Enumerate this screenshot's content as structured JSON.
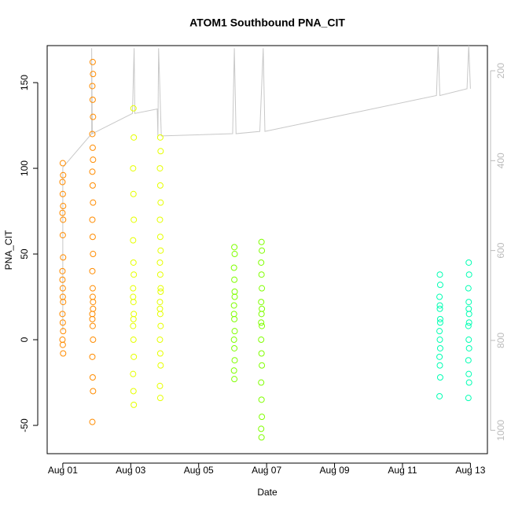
{
  "chart_data": {
    "type": "scatter",
    "title": "ATOM1 Southbound PNA_CIT",
    "xlabel": "Date",
    "ylabel": "PNA_CIT",
    "xlim": [
      0.54,
      13.5
    ],
    "ylim": [
      -66.5,
      171.6
    ],
    "y2lim": [
      1052,
      144
    ],
    "xticks": [
      {
        "value": 1,
        "label": "Aug 01"
      },
      {
        "value": 3,
        "label": "Aug 03"
      },
      {
        "value": 5,
        "label": "Aug 05"
      },
      {
        "value": 7,
        "label": "Aug 07"
      },
      {
        "value": 9,
        "label": "Aug 09"
      },
      {
        "value": 11,
        "label": "Aug 11"
      },
      {
        "value": 13,
        "label": "Aug 13"
      }
    ],
    "yticks": [
      -50,
      0,
      50,
      100,
      150
    ],
    "y2ticks": [
      200,
      400,
      600,
      800,
      1000
    ],
    "series": [
      {
        "type": "line",
        "axis": "y2",
        "color": "#c8c8c8",
        "x": [
          1.0,
          1.0,
          1.85,
          1.85,
          1.87,
          3.05,
          3.1,
          3.12,
          3.78,
          3.8,
          3.82,
          3.9,
          6.0,
          6.05,
          6.1,
          6.8,
          6.9,
          6.95,
          12.0,
          12.05,
          12.1,
          12.9,
          12.95,
          13.0
        ],
        "values": [
          778,
          415,
          340,
          150,
          340,
          295,
          150,
          295,
          285,
          345,
          150,
          345,
          340,
          150,
          340,
          335,
          150,
          335,
          255,
          144,
          255,
          240,
          144,
          240
        ]
      },
      {
        "type": "scatter",
        "color": "#ff8c00",
        "x": [
          1.0,
          1.01,
          0.99,
          1.0,
          1.01,
          0.99,
          1.0,
          1.01,
          0.99,
          1.0,
          1.01,
          0.99,
          1.0,
          1.01,
          0.99,
          1.0,
          1.01,
          0.99,
          1.0,
          1.01,
          1.88,
          1.89,
          1.87,
          1.88,
          1.89,
          1.87,
          1.88,
          1.89,
          1.87,
          1.88,
          1.89,
          1.87,
          1.88,
          1.89,
          1.87,
          1.88,
          1.89,
          1.87,
          1.88,
          1.89,
          1.87,
          1.88,
          1.89,
          1.87,
          1.88,
          1.89,
          1.87
        ],
        "values": [
          103,
          96,
          92,
          85,
          78,
          74,
          61,
          48,
          40,
          30,
          22,
          15,
          10,
          5,
          0,
          -3,
          -8,
          35,
          25,
          70,
          162,
          155,
          148,
          140,
          130,
          120,
          112,
          105,
          98,
          90,
          80,
          70,
          60,
          50,
          40,
          30,
          22,
          15,
          8,
          0,
          -10,
          -22,
          -30,
          -48,
          25,
          18,
          12
        ]
      },
      {
        "type": "scatter",
        "color": "#e6ff00",
        "x": [
          3.08,
          3.09,
          3.07,
          3.08,
          3.09,
          3.07,
          3.08,
          3.09,
          3.07,
          3.08,
          3.09,
          3.07,
          3.08,
          3.09,
          3.07,
          3.08,
          3.09,
          3.07,
          3.08,
          3.87,
          3.88,
          3.86,
          3.87,
          3.88,
          3.86,
          3.87,
          3.88,
          3.86,
          3.87,
          3.88,
          3.86,
          3.87,
          3.88,
          3.86,
          3.87,
          3.88,
          3.86,
          3.87,
          3.88,
          3.86
        ],
        "values": [
          135,
          118,
          100,
          85,
          70,
          58,
          45,
          38,
          30,
          22,
          15,
          8,
          0,
          -10,
          -20,
          -30,
          -38,
          25,
          12,
          118,
          110,
          100,
          90,
          80,
          70,
          60,
          52,
          45,
          38,
          30,
          22,
          15,
          8,
          0,
          -8,
          -15,
          -27,
          -34,
          28,
          18
        ]
      },
      {
        "type": "scatter",
        "color": "#80ff00",
        "x": [
          6.05,
          6.06,
          6.04,
          6.05,
          6.06,
          6.04,
          6.05,
          6.06,
          6.04,
          6.05,
          6.06,
          6.04,
          6.05,
          6.06,
          6.04,
          6.85,
          6.86,
          6.84,
          6.85,
          6.86,
          6.84,
          6.85,
          6.86,
          6.84,
          6.85,
          6.86,
          6.84,
          6.85,
          6.86,
          6.84,
          6.85,
          6.86,
          6.84
        ],
        "values": [
          54,
          50,
          42,
          35,
          28,
          20,
          12,
          5,
          0,
          -5,
          -12,
          -18,
          -23,
          25,
          15,
          57,
          52,
          45,
          38,
          30,
          22,
          15,
          8,
          0,
          -8,
          -15,
          -25,
          -35,
          -45,
          -52,
          -57,
          18,
          10
        ]
      },
      {
        "type": "scatter",
        "color": "#00ffb3",
        "x": [
          12.1,
          12.11,
          12.09,
          12.1,
          12.11,
          12.09,
          12.1,
          12.11,
          12.09,
          12.1,
          12.11,
          12.09,
          12.1,
          12.11,
          12.95,
          12.96,
          12.94,
          12.95,
          12.96,
          12.94,
          12.95,
          12.96,
          12.94,
          12.95,
          12.96,
          12.94,
          12.95,
          12.96
        ],
        "values": [
          38,
          32,
          25,
          18,
          10,
          5,
          0,
          -5,
          -10,
          -15,
          -22,
          -33,
          20,
          12,
          45,
          38,
          30,
          22,
          15,
          8,
          0,
          -5,
          -12,
          -20,
          -25,
          -34,
          18,
          10
        ]
      }
    ]
  }
}
